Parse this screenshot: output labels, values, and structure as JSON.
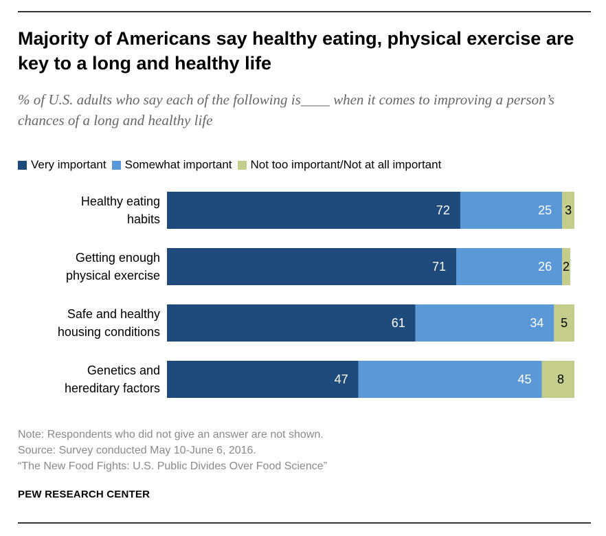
{
  "title": "Majority of Americans say healthy eating, physical exercise are key to a long and healthy life",
  "subtitle": "% of U.S. adults who say each of the following is____ when it comes to improving a person’s chances of a long and healthy life",
  "chart_data": {
    "type": "bar",
    "orientation": "horizontal",
    "stacked": true,
    "categories": [
      [
        "Healthy eating",
        "habits"
      ],
      [
        "Getting enough",
        "physical exercise"
      ],
      [
        "Safe and healthy",
        "housing conditions"
      ],
      [
        "Genetics and",
        "hereditary factors"
      ]
    ],
    "series": [
      {
        "name": "Very important",
        "values": [
          72,
          71,
          61,
          47
        ],
        "color": "#1f4a7c"
      },
      {
        "name": "Somewhat important",
        "values": [
          25,
          26,
          34,
          45
        ],
        "color": "#5b98d8"
      },
      {
        "name": "Not too important/Not at all important",
        "values": [
          3,
          2,
          5,
          8
        ],
        "color": "#c5cd8a"
      }
    ],
    "value_label_colors": [
      "#ffffff",
      "#ffffff",
      "#000000"
    ],
    "xlim": [
      0,
      100
    ],
    "legend_position": "top",
    "grid": false
  },
  "notes": [
    "Note: Respondents who did not give an answer are not shown.",
    "Source: Survey conducted May 10-June 6, 2016.",
    "“The New Food Fights: U.S. Public Divides Over Food Science”"
  ],
  "brand": "PEW RESEARCH CENTER"
}
